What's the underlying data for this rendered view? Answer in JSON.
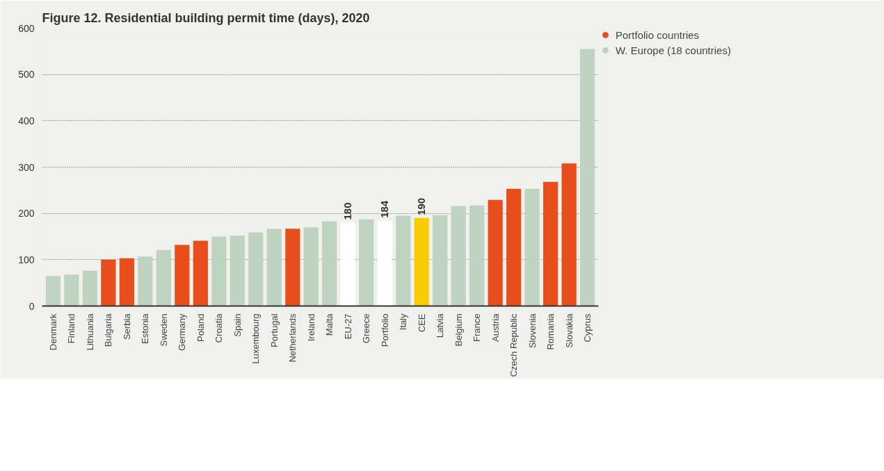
{
  "chart_data": {
    "type": "bar",
    "title": "Figure 12. Residential building permit time (days), 2020",
    "categories": [
      "Denmark",
      "Finland",
      "Lithuania",
      "Bulgaria",
      "Serbia",
      "Estonia",
      "Sweden",
      "Germany",
      "Poland",
      "Croatia",
      "Spain",
      "Luxembourg",
      "Portugal",
      "Netherlands",
      "Ireland",
      "Malta",
      "EU-27",
      "Greece",
      "Portfolio",
      "Italy",
      "CEE",
      "Latvia",
      "Belgium",
      "France",
      "Austria",
      "Czech Republic",
      "Slovenia",
      "Romania",
      "Slovakia",
      "Cyprus"
    ],
    "stacked": true,
    "series": [
      {
        "name": "Portfolio countries",
        "color": "#e84e1b",
        "values": [
          null,
          null,
          null,
          100,
          103,
          null,
          null,
          132,
          141,
          null,
          null,
          null,
          null,
          167,
          null,
          null,
          null,
          null,
          null,
          null,
          null,
          null,
          null,
          null,
          229,
          253,
          null,
          268,
          308,
          null
        ]
      },
      {
        "name": "W. Europe (18 countries)",
        "color": "#bfd3c1",
        "values": [
          65,
          68,
          76,
          null,
          null,
          107,
          121,
          null,
          null,
          150,
          152,
          159,
          167,
          null,
          170,
          183,
          null,
          187,
          null,
          195,
          null,
          196,
          216,
          217,
          null,
          null,
          253,
          null,
          null,
          555
        ]
      },
      {
        "color": "#ffffff",
        "values": [
          null,
          null,
          null,
          null,
          null,
          null,
          null,
          null,
          null,
          null,
          null,
          null,
          null,
          null,
          null,
          null,
          180,
          null,
          184,
          null,
          null,
          null,
          null,
          null,
          null,
          null,
          null,
          null,
          null,
          null
        ],
        "value_labels": [
          null,
          null,
          null,
          null,
          null,
          null,
          null,
          null,
          null,
          null,
          null,
          null,
          null,
          null,
          null,
          null,
          "180",
          null,
          "184",
          null,
          null,
          null,
          null,
          null,
          null,
          null,
          null,
          null,
          null,
          null
        ]
      },
      {
        "color": "#f9cc00",
        "values": [
          null,
          null,
          null,
          null,
          null,
          null,
          null,
          null,
          null,
          null,
          null,
          null,
          null,
          null,
          null,
          null,
          null,
          null,
          null,
          null,
          190,
          null,
          null,
          null,
          null,
          null,
          null,
          null,
          null,
          null
        ],
        "value_labels": [
          null,
          null,
          null,
          null,
          null,
          null,
          null,
          null,
          null,
          null,
          null,
          null,
          null,
          null,
          null,
          null,
          null,
          null,
          null,
          null,
          "190",
          null,
          null,
          null,
          null,
          null,
          null,
          null,
          null,
          null
        ]
      }
    ],
    "ylim": [
      0,
      600
    ],
    "yticks": [
      0,
      100,
      200,
      300,
      400,
      500,
      600
    ],
    "grid": "y",
    "legend": "top right"
  }
}
